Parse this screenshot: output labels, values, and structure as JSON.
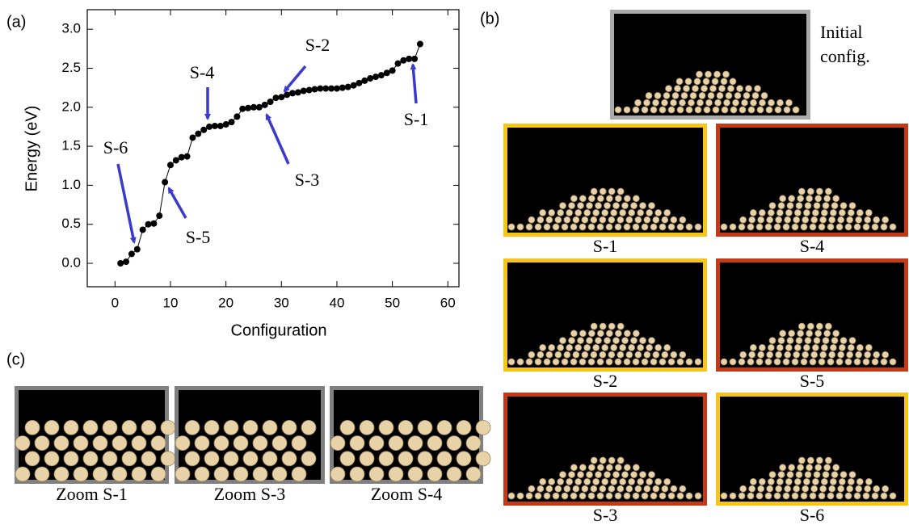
{
  "chart_data": {
    "type": "line",
    "x_label": "Configuration",
    "y_label": "Energy (eV)",
    "x": [
      1,
      2,
      3,
      4,
      5,
      6,
      7,
      8,
      9,
      10,
      11,
      12,
      13,
      14,
      15,
      16,
      17,
      18,
      19,
      20,
      21,
      22,
      23,
      24,
      25,
      26,
      27,
      28,
      29,
      30,
      31,
      32,
      33,
      34,
      35,
      36,
      37,
      38,
      39,
      40,
      41,
      42,
      43,
      44,
      45,
      46,
      47,
      48,
      49,
      50,
      51,
      52,
      53,
      54,
      55
    ],
    "values": [
      0.0,
      0.02,
      0.12,
      0.18,
      0.43,
      0.5,
      0.51,
      0.61,
      1.04,
      1.26,
      1.32,
      1.36,
      1.37,
      1.61,
      1.66,
      1.71,
      1.75,
      1.76,
      1.76,
      1.78,
      1.81,
      1.88,
      1.98,
      1.99,
      2.0,
      2.0,
      2.03,
      2.07,
      2.12,
      2.13,
      2.16,
      2.18,
      2.19,
      2.21,
      2.22,
      2.23,
      2.24,
      2.24,
      2.24,
      2.24,
      2.25,
      2.26,
      2.28,
      2.31,
      2.34,
      2.37,
      2.39,
      2.41,
      2.44,
      2.47,
      2.56,
      2.6,
      2.62,
      2.62,
      2.81
    ],
    "color": "#000000",
    "xlim": [
      -5,
      62
    ],
    "ylim": [
      -0.3,
      3.25
    ],
    "xticks": [
      0,
      10,
      20,
      30,
      40,
      50,
      60
    ],
    "yticks": [
      {
        "value": 0,
        "label": "0.0"
      },
      {
        "value": 0.5,
        "label": "0.5"
      },
      {
        "value": 1,
        "label": "1.0"
      },
      {
        "value": 1.5,
        "label": "1.5"
      },
      {
        "value": 2,
        "label": "2.0"
      },
      {
        "value": 2.5,
        "label": "2.5"
      },
      {
        "value": 3,
        "label": "3.0"
      }
    ],
    "annotations": [
      "S-1",
      "S-2",
      "S-3",
      "S-4",
      "S-5",
      "S-6"
    ],
    "annotation_color": "#3a3acb"
  },
  "panels": {
    "a": "(a)",
    "b": "(b)",
    "c": "(c)",
    "initial": [
      "Initial",
      "config."
    ],
    "b_captions": [
      "S-1",
      "S-2",
      "S-3",
      "S-4",
      "S-5",
      "S-6"
    ],
    "c_captions": [
      "Zoom S-1",
      "Zoom S-3",
      "Zoom S-4"
    ]
  }
}
